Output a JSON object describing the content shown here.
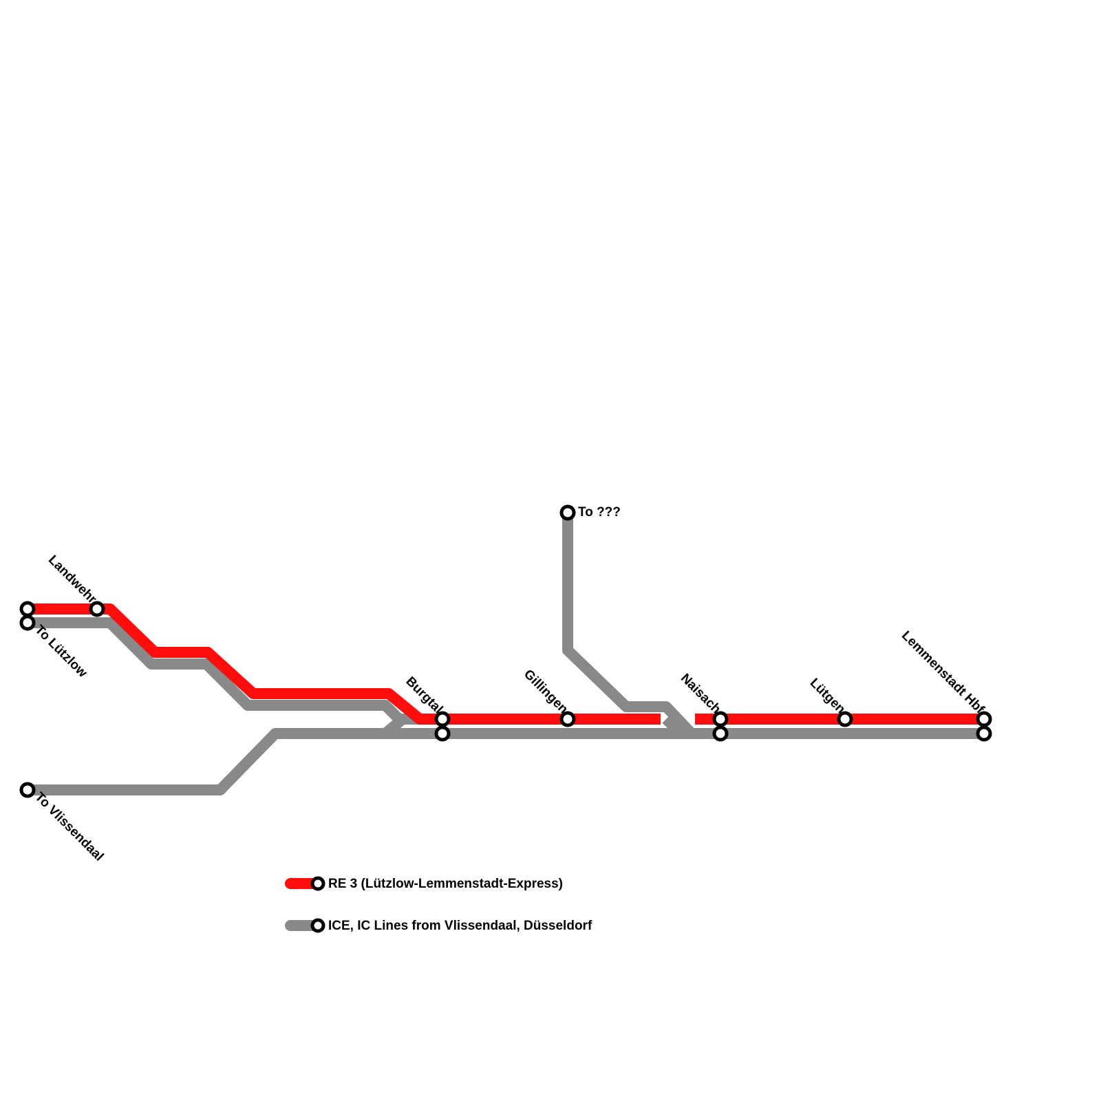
{
  "colors": {
    "re3": "#ff0d0d",
    "ice_ic": "#898989",
    "station_fill": "#ffffff",
    "station_stroke": "#000000",
    "background": "#ffffff"
  },
  "lines": {
    "re3": {
      "name": "RE 3 (Lützlow-Lemmenstadt-Express)"
    },
    "ice_ic": {
      "name": "ICE, IC Lines from Vlissendaal, Düsseldorf"
    }
  },
  "stations": {
    "landwehr": "Landwehr",
    "to_lutzlow": "To Lützlow",
    "to_vlissendaal": "To Vlissendaal",
    "burgtal": "Burgtal",
    "gillingen": "Gillingen",
    "to_unknown": "To ???",
    "naisach": "Naisach",
    "lutgen": "Lütgen",
    "lemmenstadt_hbf": "Lemmenstadt Hbf"
  },
  "legend": [
    {
      "line": "re3",
      "label": "RE 3 (Lützlow-Lemmenstadt-Express)"
    },
    {
      "line": "ice_ic",
      "label": "ICE, IC Lines from Vlissendaal, Düsseldorf"
    }
  ]
}
